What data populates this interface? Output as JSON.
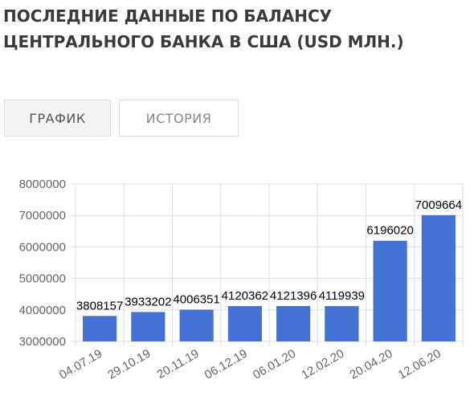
{
  "header": {
    "title": "ПОСЛЕДНИЕ ДАННЫЕ ПО БАЛАНСУ ЦЕНТРАЛЬНОГО БАНКА В США (USD МЛН.)"
  },
  "tabs": [
    "ГРАФИК",
    "ИСТОРИЯ"
  ],
  "chart_data": {
    "type": "bar",
    "categories": [
      "04.07.19",
      "29.10.19",
      "20.11.19",
      "06.12.19",
      "06.01.20",
      "12.02.20",
      "20.04.20",
      "12.06.20"
    ],
    "values": [
      3808157,
      3933202,
      4006351,
      4120362,
      4121396,
      4119939,
      6196020,
      7009664
    ],
    "color": "#4472d4",
    "ylim": [
      3000000,
      8000000
    ],
    "yticks": [
      3000000,
      4000000,
      5000000,
      6000000,
      7000000,
      8000000
    ],
    "grid": true
  }
}
